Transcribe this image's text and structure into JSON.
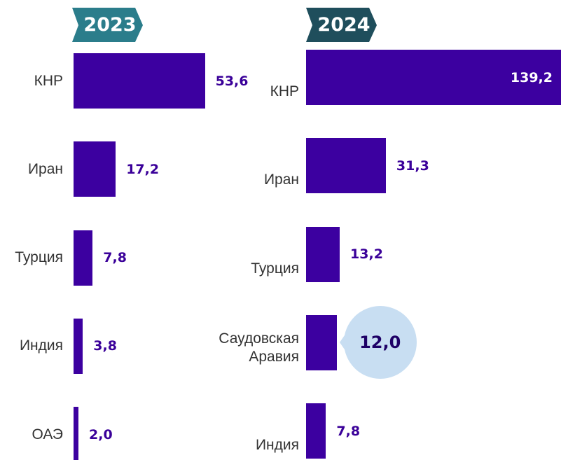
{
  "chart_data": [
    {
      "type": "bar",
      "orientation": "horizontal",
      "title": "2023",
      "categories": [
        "КНР",
        "Иран",
        "Турция",
        "Индия",
        "ОАЭ"
      ],
      "values": [
        53.6,
        17.2,
        7.8,
        3.8,
        2.0
      ],
      "value_labels": [
        "53,6",
        "17,2",
        "7,8",
        "3,8",
        "2,0"
      ],
      "color": "#3c00a0",
      "title_color": "#2b7d8b"
    },
    {
      "type": "bar",
      "orientation": "horizontal",
      "title": "2024",
      "categories": [
        "КНР",
        "Иран",
        "Турция",
        "Саудовская Аравия",
        "Индия"
      ],
      "values": [
        139.2,
        31.3,
        13.2,
        12.0,
        7.8
      ],
      "value_labels": [
        "139,2",
        "31,3",
        "13,2",
        "12,0",
        "7,8"
      ],
      "color": "#3c00a0",
      "title_color": "#1f4e5c"
    }
  ]
}
